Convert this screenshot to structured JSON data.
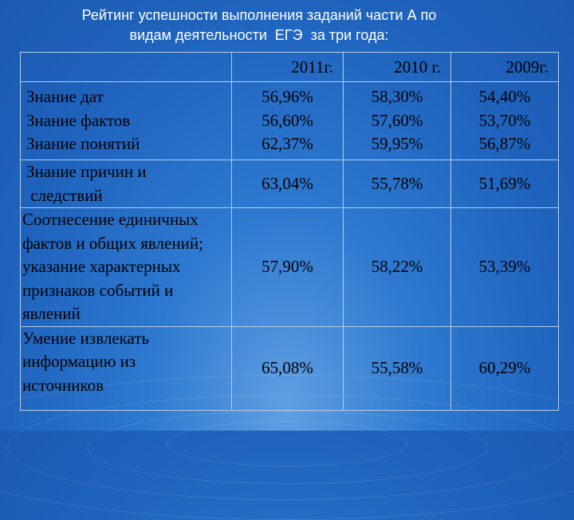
{
  "title": {
    "line1": "Рейтинг успешности выполнения заданий части А по",
    "line2": "видам деятельности  ЕГЭ  за три года:"
  },
  "table": {
    "columns": [
      "",
      "2011г.",
      "2010 г.",
      "2009г."
    ],
    "rows": [
      {
        "labels": [
          "Знание дат",
          "Знание фактов",
          "Знание понятий"
        ],
        "y2011": [
          "56,96%",
          "56,60%",
          "62,37%"
        ],
        "y2010": [
          "58,30%",
          "57,60%",
          "59,95%"
        ],
        "y2009": [
          "54,40%",
          "53,70%",
          "56,87%"
        ]
      },
      {
        "labels": [
          "Знание причин и",
          " следствий"
        ],
        "y2011": "63,04%",
        "y2010": "55,78%",
        "y2009": "51,69%"
      },
      {
        "labels": [
          "Соотнесение единичных",
          "фактов и общих явлений;",
          "указание характерных",
          "признаков событий и",
          "явлений"
        ],
        "y2011": "57,90%",
        "y2010": "58,22%",
        "y2009": "53,39%"
      },
      {
        "labels": [
          "Умение извлекать",
          "информацию из",
          "источников"
        ],
        "y2011": "65,08%",
        "y2010": "55,58%",
        "y2009": "60,29%"
      }
    ]
  }
}
